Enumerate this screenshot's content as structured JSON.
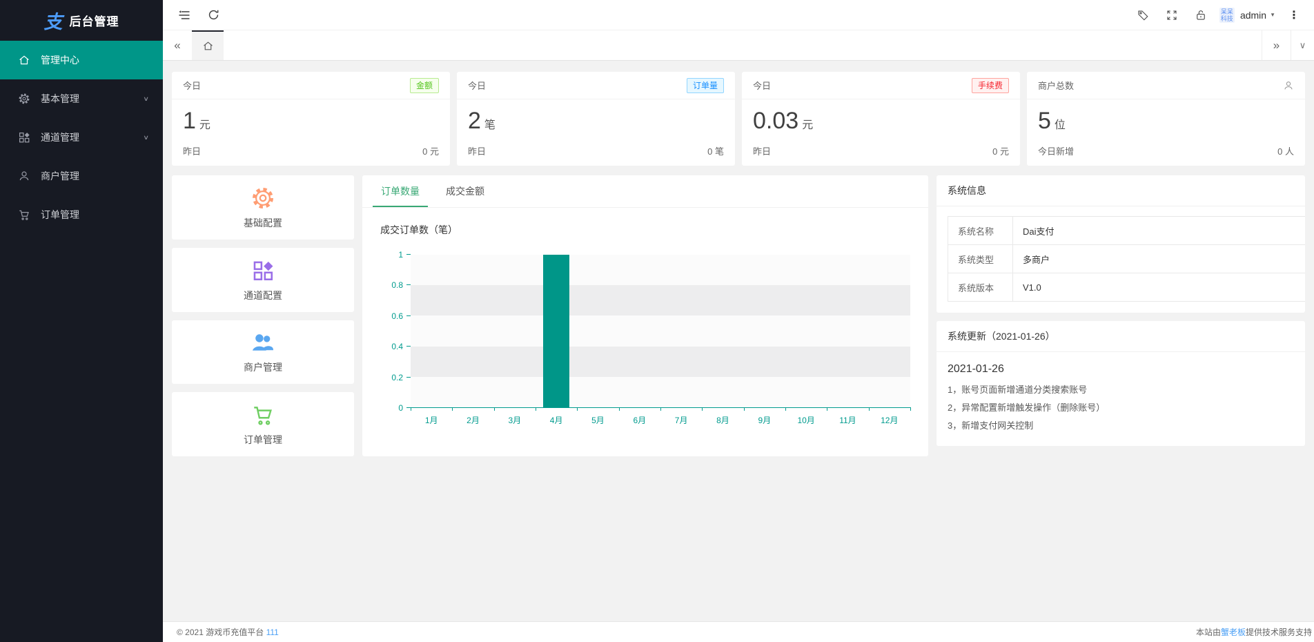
{
  "colors": {
    "accent_teal": "#009688",
    "tab_active": "#38a874",
    "sidebar_bg": "#171a23",
    "link_blue": "#4a9ff5",
    "badge_green": "#52c41a",
    "badge_blue": "#1890ff",
    "badge_red": "#f5222d"
  },
  "icons": {
    "tabs_scroll_left": "«",
    "tabs_scroll_right": "»",
    "tab_dropdown": "∨",
    "more_vertical": "⋮",
    "admin_caret": "▼",
    "menu_chevron": "∨"
  },
  "sidebar": {
    "logo_glyph": "支",
    "title": "后台管理",
    "items": [
      {
        "label": "管理中心",
        "icon": "home-icon",
        "active": true
      },
      {
        "label": "基本管理",
        "icon": "gear-icon",
        "chevron": true
      },
      {
        "label": "通道管理",
        "icon": "grid-icon",
        "chevron": true
      },
      {
        "label": "商户管理",
        "icon": "user-icon"
      },
      {
        "label": "订单管理",
        "icon": "cart-icon"
      }
    ]
  },
  "header": {
    "username": "admin",
    "avatar_text": "呆呆科技"
  },
  "stat_cards": [
    {
      "period": "今日",
      "badge": "金额",
      "value": "1",
      "unit": "元",
      "footer_label": "昨日",
      "footer_value": "0 元"
    },
    {
      "period": "今日",
      "badge": "订单量",
      "value": "2",
      "unit": "笔",
      "footer_label": "昨日",
      "footer_value": "0 笔"
    },
    {
      "period": "今日",
      "badge": "手续费",
      "value": "0.03",
      "unit": "元",
      "footer_label": "昨日",
      "footer_value": "0 元"
    },
    {
      "period": "商户总数",
      "icon": "user-icon",
      "value": "5",
      "unit": "位",
      "footer_label": "今日新增",
      "footer_value": "0 人"
    }
  ],
  "quick_actions": [
    {
      "label": "基础配置",
      "icon": "gear-icon",
      "color": "#ff9d73"
    },
    {
      "label": "通道配置",
      "icon": "grid-icon",
      "color": "#9a6ee8"
    },
    {
      "label": "商户管理",
      "icon": "users-icon",
      "color": "#5aa7f0"
    },
    {
      "label": "订单管理",
      "icon": "cart-icon",
      "color": "#6fce62"
    }
  ],
  "chart_card": {
    "tabs": [
      {
        "label": "订单数量",
        "active": true
      },
      {
        "label": "成交金额",
        "active": false
      }
    ],
    "title": "成交订单数（笔）"
  },
  "chart_data": {
    "type": "bar",
    "title": "成交订单数（笔）",
    "categories": [
      "1月",
      "2月",
      "3月",
      "4月",
      "5月",
      "6月",
      "7月",
      "8月",
      "9月",
      "10月",
      "11月",
      "12月"
    ],
    "values": [
      0,
      0,
      0,
      1,
      0,
      0,
      0,
      0,
      0,
      0,
      0,
      0
    ],
    "xlabel": "",
    "ylabel": "",
    "ylim": [
      0,
      1
    ],
    "yticks": [
      0,
      0.2,
      0.4,
      0.6,
      0.8,
      1
    ],
    "grid": "zebra-bands",
    "legend": "none",
    "bar_color": "#009688",
    "axis_color": "#009b8e"
  },
  "system_info": {
    "title": "系统信息",
    "rows": [
      [
        "系统名称",
        "Dai支付"
      ],
      [
        "系统类型",
        "多商户"
      ],
      [
        "系统版本",
        "V1.0"
      ]
    ]
  },
  "system_update": {
    "title": "系统更新（2021-01-26）",
    "date": "2021-01-26",
    "items": [
      "1，账号页面新增通道分类搜索账号",
      "2，异常配置新增触发操作（删除账号）",
      "3，新增支付网关控制"
    ]
  },
  "footer": {
    "left_text": "© 2021 游戏币充值平台",
    "left_link": "111",
    "right_prefix": "本站由",
    "right_link": "蟹老板",
    "right_suffix": "提供技术服务支持"
  }
}
